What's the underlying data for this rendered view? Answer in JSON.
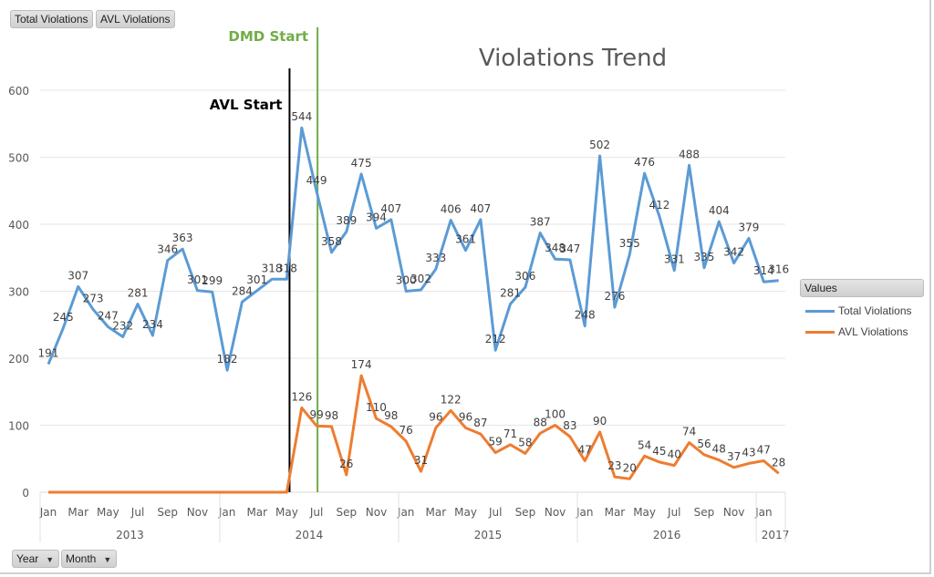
{
  "filters": {
    "top_buttons": [
      "Total Violations",
      "AVL Violations"
    ],
    "bottom_buttons": [
      "Year",
      "Month"
    ]
  },
  "legend": {
    "title": "Values",
    "items": [
      {
        "label": "Total Violations",
        "color": "#5b9bd5"
      },
      {
        "label": "AVL Violations",
        "color": "#ed7d31"
      }
    ]
  },
  "icons": {
    "dropdown": "caret-down-icon"
  },
  "chart_data": {
    "type": "line",
    "title": "Violations Trend",
    "xlabel": "",
    "ylabel": "",
    "ylim": [
      0,
      600
    ],
    "yticks": [
      0,
      100,
      200,
      300,
      400,
      500,
      600
    ],
    "grid": true,
    "legend_position": "right",
    "x": [
      "Jan 2013",
      "Feb 2013",
      "Mar 2013",
      "Apr 2013",
      "May 2013",
      "Jun 2013",
      "Jul 2013",
      "Aug 2013",
      "Sep 2013",
      "Oct 2013",
      "Nov 2013",
      "Dec 2013",
      "Jan 2014",
      "Feb 2014",
      "Mar 2014",
      "Apr 2014",
      "May 2014",
      "Jun 2014",
      "Jul 2014",
      "Aug 2014",
      "Sep 2014",
      "Oct 2014",
      "Nov 2014",
      "Dec 2014",
      "Jan 2015",
      "Feb 2015",
      "Mar 2015",
      "Apr 2015",
      "May 2015",
      "Jun 2015",
      "Jul 2015",
      "Aug 2015",
      "Sep 2015",
      "Oct 2015",
      "Nov 2015",
      "Dec 2015",
      "Jan 2016",
      "Feb 2016",
      "Mar 2016",
      "Apr 2016",
      "May 2016",
      "Jun 2016",
      "Jul 2016",
      "Aug 2016",
      "Sep 2016",
      "Oct 2016",
      "Nov 2016",
      "Dec 2016",
      "Jan 2017",
      "Feb 2017"
    ],
    "month_tick_labels": [
      "Jan",
      "Mar",
      "May",
      "Jul",
      "Sep",
      "Nov"
    ],
    "years": [
      {
        "label": "2013",
        "months": 12
      },
      {
        "label": "2014",
        "months": 12
      },
      {
        "label": "2015",
        "months": 12
      },
      {
        "label": "2016",
        "months": 12
      },
      {
        "label": "2017",
        "months": 2
      }
    ],
    "series": [
      {
        "name": "Total Violations",
        "color": "#5b9bd5",
        "values": [
          191,
          245,
          307,
          273,
          247,
          232,
          281,
          234,
          346,
          363,
          301,
          299,
          182,
          284,
          301,
          318,
          318,
          544,
          449,
          358,
          389,
          475,
          394,
          407,
          300,
          302,
          333,
          406,
          361,
          407,
          212,
          281,
          306,
          387,
          348,
          347,
          248,
          502,
          276,
          355,
          476,
          412,
          331,
          488,
          335,
          404,
          342,
          379,
          314,
          316
        ],
        "show_labels": true
      },
      {
        "name": "AVL Violations",
        "color": "#ed7d31",
        "values": [
          0,
          0,
          0,
          0,
          0,
          0,
          0,
          0,
          0,
          0,
          0,
          0,
          0,
          0,
          0,
          0,
          0,
          126,
          99,
          98,
          26,
          174,
          110,
          98,
          76,
          31,
          96,
          122,
          96,
          87,
          59,
          71,
          58,
          88,
          100,
          83,
          47,
          90,
          23,
          20,
          54,
          45,
          40,
          74,
          56,
          48,
          37,
          43,
          47,
          28
        ],
        "label_from_index": 17
      }
    ],
    "annotations": [
      {
        "label": "AVL Start",
        "at_index": 16,
        "color": "#000000"
      },
      {
        "label": "DMD Start",
        "at_index": 18,
        "color": "#70ad47"
      }
    ]
  }
}
